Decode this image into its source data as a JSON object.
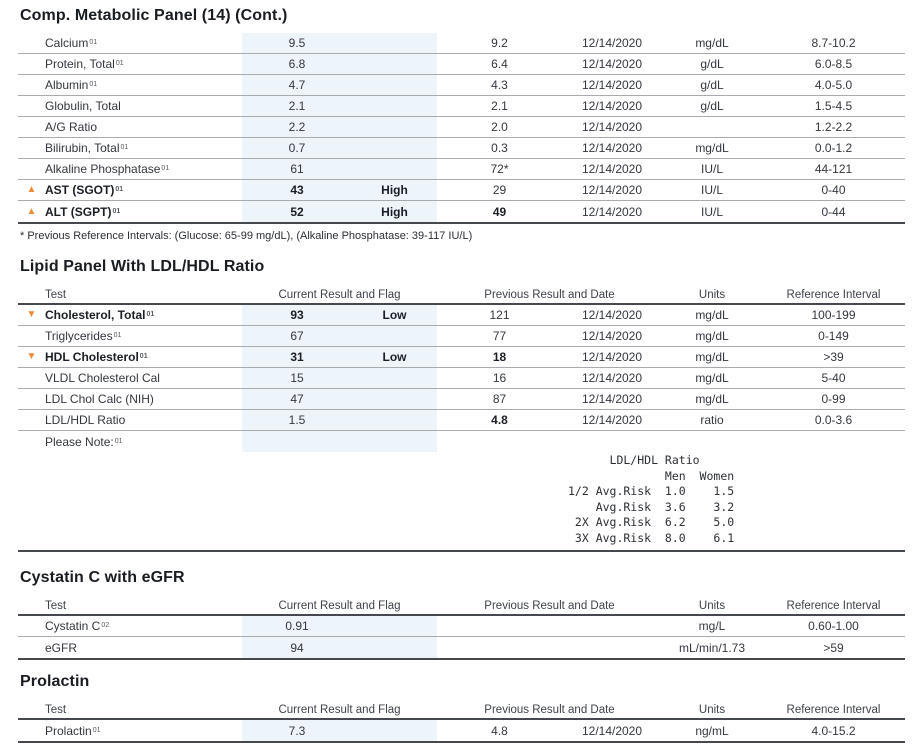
{
  "colors": {
    "flag_orange": "#EE8C3A",
    "result_band_blue": "#EDF4FA",
    "rule_thin": "#A8ABAE",
    "rule_thick": "#45484C"
  },
  "column_headers": {
    "test": "Test",
    "current": "Current Result and Flag",
    "previous": "Previous Result and Date",
    "units": "Units",
    "reference": "Reference Interval"
  },
  "flag_glyphs": {
    "triangle-up": "▲",
    "triangle-down": "▼"
  },
  "sections": [
    {
      "id": "cmp",
      "title": "Comp. Metabolic Panel (14) (Cont.)",
      "show_header": false,
      "rows": [
        {
          "test": "Calcium",
          "sup": "01",
          "flag": "",
          "bold": false,
          "result": "9.5",
          "flag_text": "",
          "prev": "9.2",
          "prev_bold": false,
          "date": "12/14/2020",
          "units": "mg/dL",
          "ref": "8.7-10.2"
        },
        {
          "test": "Protein, Total",
          "sup": "01",
          "flag": "",
          "bold": false,
          "result": "6.8",
          "flag_text": "",
          "prev": "6.4",
          "prev_bold": false,
          "date": "12/14/2020",
          "units": "g/dL",
          "ref": "6.0-8.5"
        },
        {
          "test": "Albumin",
          "sup": "01",
          "flag": "",
          "bold": false,
          "result": "4.7",
          "flag_text": "",
          "prev": "4.3",
          "prev_bold": false,
          "date": "12/14/2020",
          "units": "g/dL",
          "ref": "4.0-5.0"
        },
        {
          "test": "Globulin, Total",
          "sup": "",
          "flag": "",
          "bold": false,
          "result": "2.1",
          "flag_text": "",
          "prev": "2.1",
          "prev_bold": false,
          "date": "12/14/2020",
          "units": "g/dL",
          "ref": "1.5-4.5"
        },
        {
          "test": "A/G Ratio",
          "sup": "",
          "flag": "",
          "bold": false,
          "result": "2.2",
          "flag_text": "",
          "prev": "2.0",
          "prev_bold": false,
          "date": "12/14/2020",
          "units": "",
          "ref": "1.2-2.2"
        },
        {
          "test": "Bilirubin, Total",
          "sup": "01",
          "flag": "",
          "bold": false,
          "result": "0.7",
          "flag_text": "",
          "prev": "0.3",
          "prev_bold": false,
          "date": "12/14/2020",
          "units": "mg/dL",
          "ref": "0.0-1.2"
        },
        {
          "test": "Alkaline Phosphatase",
          "sup": "01",
          "flag": "",
          "bold": false,
          "result": "61",
          "flag_text": "",
          "prev": "72*",
          "prev_bold": false,
          "date": "12/14/2020",
          "units": "IU/L",
          "ref": "44-121"
        },
        {
          "test": "AST (SGOT)",
          "sup": "01",
          "flag": "triangle-up",
          "bold": true,
          "result": "43",
          "flag_text": "High",
          "prev": "29",
          "prev_bold": false,
          "date": "12/14/2020",
          "units": "IU/L",
          "ref": "0-40"
        },
        {
          "test": "ALT (SGPT)",
          "sup": "01",
          "flag": "triangle-up",
          "bold": true,
          "result": "52",
          "flag_text": "High",
          "prev": "49",
          "prev_bold": true,
          "date": "12/14/2020",
          "units": "IU/L",
          "ref": "0-44"
        }
      ],
      "footnote": "* Previous Reference Intervals: (Glucose: 65-99 mg/dL), (Alkaline Phosphatase: 39-117 IU/L)"
    },
    {
      "id": "lipid",
      "title": "Lipid Panel With LDL/HDL Ratio",
      "show_header": true,
      "rows": [
        {
          "test": "Cholesterol, Total",
          "sup": "01",
          "flag": "triangle-down",
          "bold": true,
          "result": "93",
          "flag_text": "Low",
          "prev": "121",
          "prev_bold": false,
          "date": "12/14/2020",
          "units": "mg/dL",
          "ref": "100-199"
        },
        {
          "test": "Triglycerides",
          "sup": "01",
          "flag": "",
          "bold": false,
          "result": "67",
          "flag_text": "",
          "prev": "77",
          "prev_bold": false,
          "date": "12/14/2020",
          "units": "mg/dL",
          "ref": "0-149"
        },
        {
          "test": "HDL Cholesterol",
          "sup": "01",
          "flag": "triangle-down",
          "bold": true,
          "result": "31",
          "flag_text": "Low",
          "prev": "18",
          "prev_bold": true,
          "date": "12/14/2020",
          "units": "mg/dL",
          "ref": ">39"
        },
        {
          "test": "VLDL Cholesterol Cal",
          "sup": "",
          "flag": "",
          "bold": false,
          "result": "15",
          "flag_text": "",
          "prev": "16",
          "prev_bold": false,
          "date": "12/14/2020",
          "units": "mg/dL",
          "ref": "5-40"
        },
        {
          "test": "LDL Chol Calc (NIH)",
          "sup": "",
          "flag": "",
          "bold": false,
          "result": "47",
          "flag_text": "",
          "prev": "87",
          "prev_bold": false,
          "date": "12/14/2020",
          "units": "mg/dL",
          "ref": "0-99"
        },
        {
          "test": "LDL/HDL Ratio",
          "sup": "",
          "flag": "",
          "bold": false,
          "result": "1.5",
          "flag_text": "",
          "prev": "4.8",
          "prev_bold": true,
          "date": "12/14/2020",
          "units": "ratio",
          "ref": "0.0-3.6"
        }
      ],
      "note": {
        "label": "Please Note:",
        "sup": "01"
      },
      "mono_table": {
        "title": "LDL/HDL Ratio",
        "lines": [
          "      LDL/HDL Ratio",
          "              Men  Women",
          "1/2 Avg.Risk  1.0    1.5",
          "    Avg.Risk  3.6    3.2",
          " 2X Avg.Risk  6.2    5.0",
          " 3X Avg.Risk  8.0    6.1"
        ]
      }
    },
    {
      "id": "cystatin",
      "title": "Cystatin C with eGFR",
      "show_header": true,
      "rows": [
        {
          "test": "Cystatin C",
          "sup": "02",
          "flag": "",
          "bold": false,
          "result": "0.91",
          "flag_text": "",
          "prev": "",
          "prev_bold": false,
          "date": "",
          "units": "mg/L",
          "ref": "0.60-1.00"
        },
        {
          "test": "eGFR",
          "sup": "",
          "flag": "",
          "bold": false,
          "result": "94",
          "flag_text": "",
          "prev": "",
          "prev_bold": false,
          "date": "",
          "units": "mL/min/1.73",
          "ref": ">59"
        }
      ]
    },
    {
      "id": "prolactin",
      "title": "Prolactin",
      "show_header": true,
      "rows": [
        {
          "test": "Prolactin",
          "sup": "01",
          "flag": "",
          "bold": false,
          "result": "7.3",
          "flag_text": "",
          "prev": "4.8",
          "prev_bold": false,
          "date": "12/14/2020",
          "units": "ng/mL",
          "ref": "4.0-15.2"
        }
      ]
    }
  ]
}
